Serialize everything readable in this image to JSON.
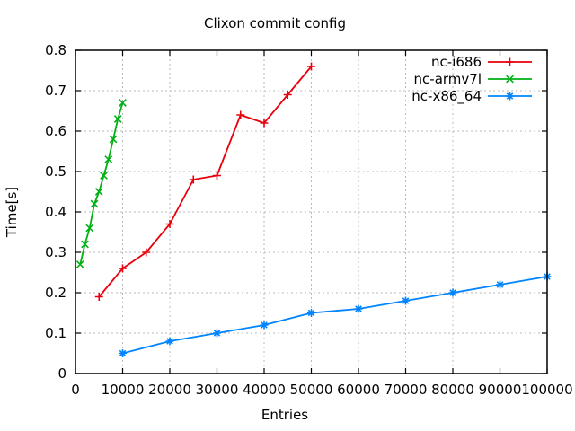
{
  "title": "Clixon commit config",
  "axes": {
    "xlabel": "Entries",
    "ylabel": "Time[s]",
    "xlim": [
      0,
      100000
    ],
    "ylim": [
      0,
      0.8
    ],
    "xticks": [
      0,
      10000,
      20000,
      30000,
      40000,
      50000,
      60000,
      70000,
      80000,
      90000,
      100000
    ],
    "yticks": [
      0,
      0.1,
      0.2,
      0.3,
      0.4,
      0.5,
      0.6,
      0.7,
      0.8
    ]
  },
  "grid_color": "#b8b8b8",
  "border_color": "#000000",
  "chart_data": {
    "type": "line",
    "title": "Clixon commit config",
    "xlabel": "Entries",
    "ylabel": "Time[s]",
    "xlim": [
      0,
      100000
    ],
    "ylim": [
      0,
      0.8
    ],
    "grid": true,
    "legend_position": "top-right-inside",
    "series": [
      {
        "name": "nc-i686",
        "color": "#e8000d",
        "marker": "plus",
        "x": [
          5000,
          10000,
          15000,
          20000,
          25000,
          30000,
          35000,
          40000,
          45000,
          50000
        ],
        "y": [
          0.19,
          0.26,
          0.3,
          0.37,
          0.48,
          0.49,
          0.64,
          0.62,
          0.69,
          0.76
        ]
      },
      {
        "name": "nc-armv7l",
        "color": "#00b014",
        "marker": "cross",
        "x": [
          1000,
          2000,
          3000,
          4000,
          5000,
          6000,
          7000,
          8000,
          9000,
          10000
        ],
        "y": [
          0.27,
          0.32,
          0.36,
          0.42,
          0.45,
          0.49,
          0.53,
          0.58,
          0.63,
          0.67
        ]
      },
      {
        "name": "nc-x86_64",
        "color": "#0084ff",
        "marker": "star",
        "x": [
          10000,
          20000,
          30000,
          40000,
          50000,
          60000,
          70000,
          80000,
          90000,
          100000
        ],
        "y": [
          0.05,
          0.08,
          0.1,
          0.12,
          0.15,
          0.16,
          0.18,
          0.2,
          0.22,
          0.24
        ]
      }
    ]
  }
}
